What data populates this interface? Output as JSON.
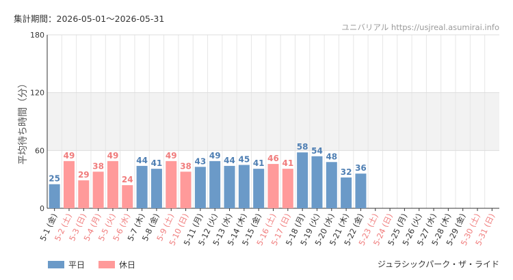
{
  "header": {
    "period": "集計期間：2026-05-01〜2026-05-31",
    "source": "ユニバリアル  https://usjreal.asumirai.info"
  },
  "footer": {
    "ride": "ジュラシックパーク・ザ・ライド"
  },
  "colors": {
    "weekday": "#6b9ac8",
    "holiday": "#ff9a9a",
    "weekday_text": "#4f7fb3",
    "holiday_text": "#f07c7c",
    "band": "#f2f2f2"
  },
  "legend": [
    {
      "label": "平日",
      "color": "#6b9ac8"
    },
    {
      "label": "休日",
      "color": "#ff9a9a"
    }
  ],
  "chart_data": {
    "type": "bar",
    "ylabel": "平均待ち時間（分）",
    "ylim": [
      0,
      180
    ],
    "yticks": [
      0,
      60,
      120,
      180
    ],
    "band": [
      60,
      120
    ],
    "categories": [
      "5-1 (金)",
      "5-2 (土)",
      "5-3 (日)",
      "5-4 (月)",
      "5-5 (火)",
      "5-6 (水)",
      "5-7 (木)",
      "5-8 (金)",
      "5-9 (土)",
      "5-10 (日)",
      "5-11 (月)",
      "5-12 (火)",
      "5-13 (水)",
      "5-14 (木)",
      "5-15 (金)",
      "5-16 (土)",
      "5-17 (日)",
      "5-18 (月)",
      "5-19 (火)",
      "5-20 (水)",
      "5-21 (木)",
      "5-22 (金)",
      "5-23 (土)",
      "5-24 (日)",
      "5-25 (月)",
      "5-26 (火)",
      "5-27 (水)",
      "5-28 (木)",
      "5-29 (金)",
      "5-30 (土)",
      "5-31 (日)"
    ],
    "values": [
      25,
      49,
      29,
      38,
      49,
      24,
      44,
      41,
      49,
      38,
      43,
      49,
      44,
      45,
      41,
      46,
      41,
      58,
      54,
      48,
      32,
      36,
      null,
      null,
      null,
      null,
      null,
      null,
      null,
      null,
      null
    ],
    "day_type": [
      "weekday",
      "holiday",
      "holiday",
      "holiday",
      "holiday",
      "holiday",
      "weekday",
      "weekday",
      "holiday",
      "holiday",
      "weekday",
      "weekday",
      "weekday",
      "weekday",
      "weekday",
      "holiday",
      "holiday",
      "weekday",
      "weekday",
      "weekday",
      "weekday",
      "weekday",
      "holiday",
      "holiday",
      "weekday",
      "weekday",
      "weekday",
      "weekday",
      "weekday",
      "holiday",
      "holiday"
    ]
  }
}
